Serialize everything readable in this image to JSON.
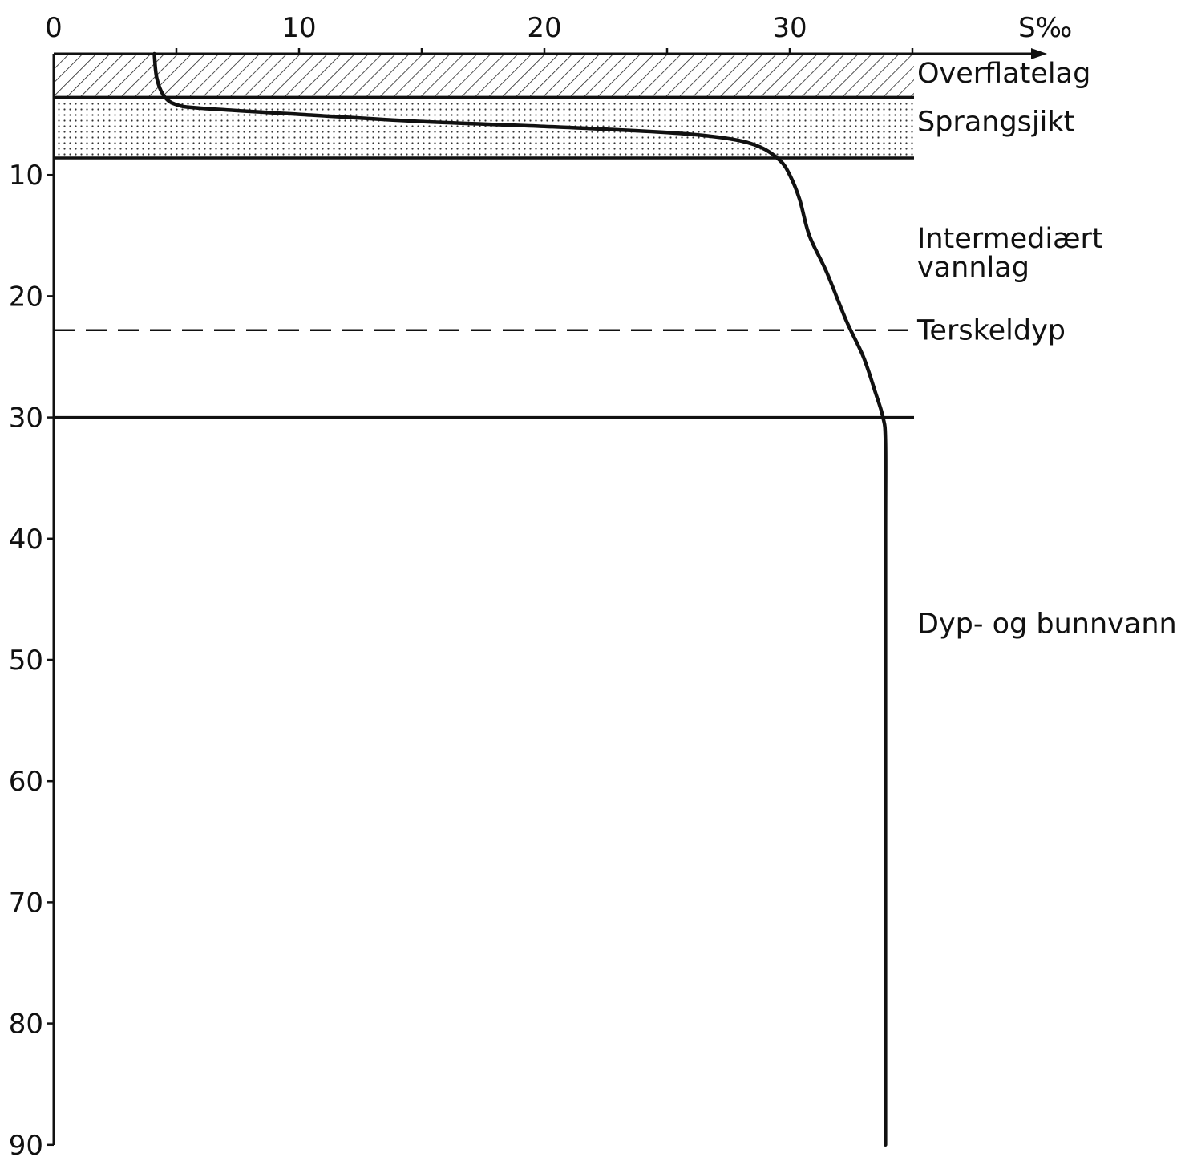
{
  "chart_data": {
    "type": "line",
    "x_axis": {
      "label": "S‰",
      "ticks": [
        0,
        10,
        20,
        30
      ],
      "range": [
        0,
        35
      ],
      "position": "top"
    },
    "y_axis": {
      "ticks": [
        10,
        20,
        30,
        40,
        50,
        60,
        70,
        80,
        90
      ],
      "range": [
        0,
        90
      ],
      "inverted": true
    },
    "series": [
      {
        "x": [
          4.1,
          4.2,
          4.5,
          5.0,
          6.0,
          10.0,
          15.0,
          20.0,
          25.0,
          27.5,
          28.8,
          29.6,
          30.0,
          30.4,
          30.8,
          31.5,
          32.3,
          33.0,
          33.5,
          33.8,
          33.9,
          33.9,
          33.9,
          33.9
        ],
        "y": [
          0,
          2,
          3.5,
          4.2,
          4.5,
          5.0,
          5.6,
          6.0,
          6.5,
          7.0,
          7.7,
          8.8,
          10.0,
          12.0,
          15.0,
          18.0,
          22.0,
          25.0,
          28.0,
          30.0,
          32.0,
          40.0,
          60.0,
          90.0
        ]
      }
    ],
    "layers": [
      {
        "name": "Overflatelag",
        "top": 0,
        "bottom": 3.6,
        "fill": "hatched"
      },
      {
        "name": "Sprangsjikt",
        "top": 3.6,
        "bottom": 8.6,
        "fill": "dotted"
      },
      {
        "name": "Intermediært vannlag",
        "name_lines": [
          "Intermediært",
          "vannlag"
        ],
        "top": 8.6,
        "bottom": 30
      },
      {
        "name": "Dyp- og bunnvann",
        "top": 30,
        "bottom": 90
      }
    ],
    "threshold": {
      "name": "Terskeldyp",
      "depth": 22.8,
      "style": "dashed"
    }
  }
}
